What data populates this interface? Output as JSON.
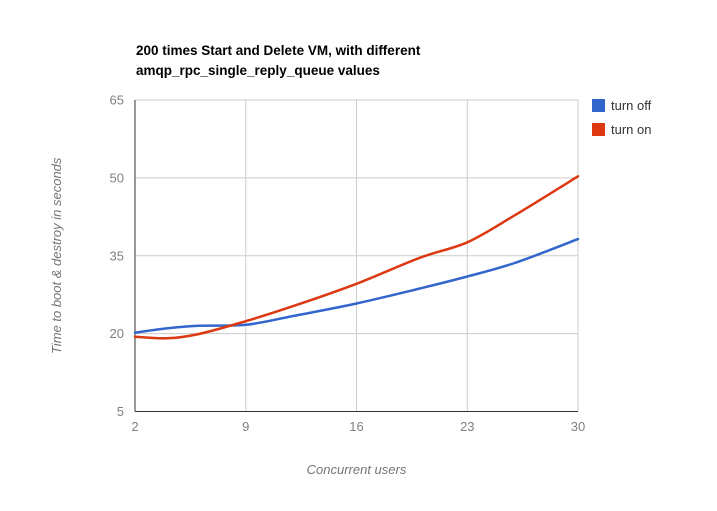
{
  "chart_data": {
    "type": "line",
    "title": "200 times Start and Delete VM, with different amqp_rpc_single_reply_queue values",
    "title_lines": [
      "200 times Start and Delete VM, with different",
      "amqp_rpc_single_reply_queue values"
    ],
    "xlabel": "Concurrent users",
    "ylabel": "Time to boot & destroy in seconds",
    "xlim": [
      2,
      30
    ],
    "ylim": [
      5,
      65
    ],
    "x_ticks": [
      2,
      9,
      16,
      23,
      30
    ],
    "y_ticks": [
      5,
      20,
      35,
      50,
      65
    ],
    "grid": true,
    "smooth": true,
    "legend_position": "right",
    "colors": {
      "background": "#ffffff",
      "gridline": "#cccccc",
      "axis": "#333333",
      "tick_text": "#808080",
      "axis_title_text": "#757575",
      "title_text": "#000000",
      "legend_text": "#333333"
    },
    "x": [
      2,
      4,
      6,
      9,
      12,
      16,
      20,
      23,
      26,
      30
    ],
    "series": [
      {
        "name": "turn off",
        "color": "#3366cc",
        "values": [
          20.2,
          21.0,
          21.5,
          21.7,
          23.4,
          25.8,
          28.7,
          31.0,
          33.6,
          38.2
        ]
      },
      {
        "name": "turn on",
        "color": "#dc3912",
        "values": [
          19.4,
          19.1,
          19.9,
          22.4,
          25.3,
          29.6,
          34.6,
          37.6,
          42.8,
          50.3
        ]
      }
    ]
  }
}
